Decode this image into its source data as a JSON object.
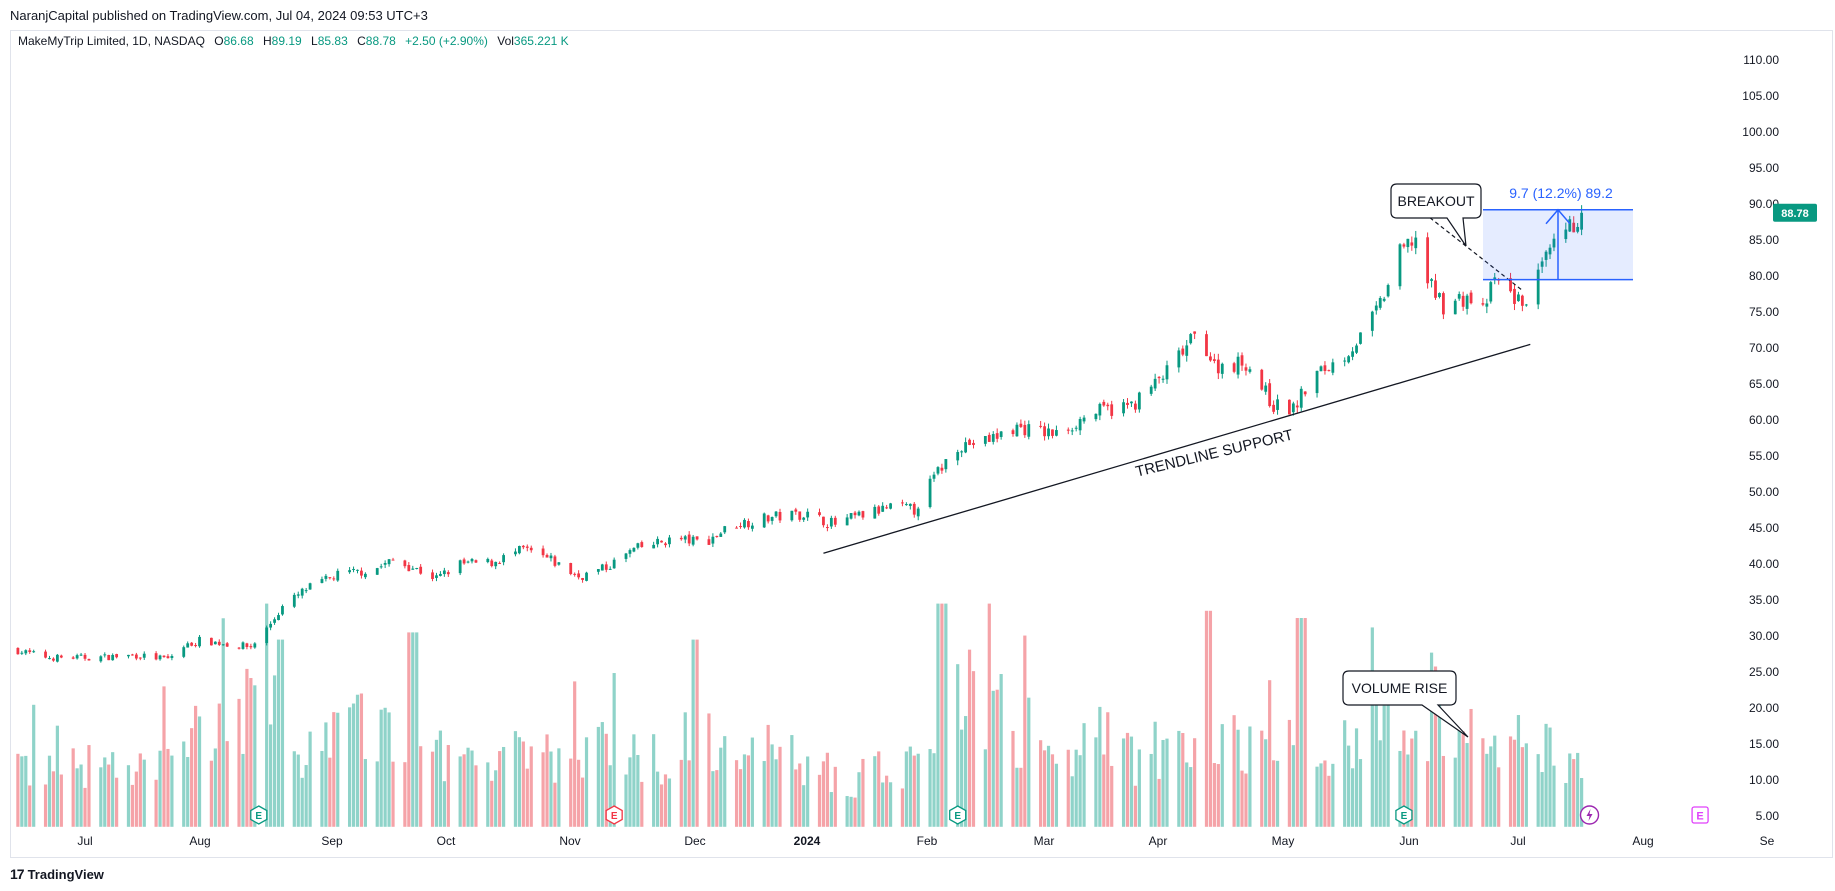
{
  "header": {
    "published": "NaranjCapital published on TradingView.com, Jul 04, 2024 09:53 UTC+3"
  },
  "legend": {
    "symbol": "MakeMyTrip Limited, 1D, NASDAQ",
    "o_label": "O",
    "o_value": "86.68",
    "h_label": "H",
    "h_value": "89.19",
    "l_label": "L",
    "l_value": "85.83",
    "c_label": "C",
    "c_value": "88.78",
    "change": "+2.50 (+2.90%)",
    "vol_label": "Vol",
    "vol_value": "365.221 K"
  },
  "footer": {
    "logo_mark": "17",
    "brand": "TradingView"
  },
  "colors": {
    "up": "#089981",
    "down": "#f23645",
    "up_vol": "#8fd3c9",
    "down_vol": "#f5a3a8",
    "accent": "#2962ff"
  },
  "chart_data": {
    "type": "candlestick",
    "price_axis": {
      "ticks": [
        "110.00",
        "105.00",
        "100.00",
        "95.00",
        "90.00",
        "85.00",
        "80.00",
        "75.00",
        "70.00",
        "65.00",
        "60.00",
        "55.00",
        "50.00",
        "45.00",
        "40.00",
        "35.00",
        "30.00",
        "25.00",
        "20.00",
        "15.00",
        "10.00",
        "5.00"
      ],
      "range": [
        3.5,
        112.5
      ]
    },
    "time_axis": {
      "ticks": [
        "Jul",
        "Aug",
        "Sep",
        "Oct",
        "Nov",
        "Dec",
        "2024",
        "Feb",
        "Mar",
        "Apr",
        "May",
        "Jun",
        "Jul",
        "Aug",
        "Se"
      ]
    },
    "last_price": "88.78",
    "close_path": [
      [
        "2023-06-10",
        28.2
      ],
      [
        "2023-06-20",
        27.0
      ],
      [
        "2023-07-01",
        27.0
      ],
      [
        "2023-07-12",
        27.3
      ],
      [
        "2023-07-20",
        26.8
      ],
      [
        "2023-07-24",
        28.5
      ],
      [
        "2023-07-28",
        29.4
      ],
      [
        "2023-08-05",
        28.8
      ],
      [
        "2023-08-10",
        28.5
      ],
      [
        "2023-08-14",
        31.0
      ],
      [
        "2023-08-18",
        34.0
      ],
      [
        "2023-08-24",
        36.5
      ],
      [
        "2023-09-01",
        38.5
      ],
      [
        "2023-09-10",
        39.2
      ],
      [
        "2023-09-15",
        40.5
      ],
      [
        "2023-09-20",
        39.5
      ],
      [
        "2023-09-26",
        38.0
      ],
      [
        "2023-10-02",
        40.0
      ],
      [
        "2023-10-10",
        40.2
      ],
      [
        "2023-10-18",
        42.0
      ],
      [
        "2023-10-25",
        40.5
      ],
      [
        "2023-11-01",
        38.2
      ],
      [
        "2023-11-08",
        39.5
      ],
      [
        "2023-11-15",
        42.0
      ],
      [
        "2023-11-25",
        43.5
      ],
      [
        "2023-12-03",
        43.0
      ],
      [
        "2023-12-10",
        45.5
      ],
      [
        "2023-12-20",
        46.5
      ],
      [
        "2023-12-28",
        47.0
      ],
      [
        "2024-01-05",
        45.5
      ],
      [
        "2024-01-10",
        46.5
      ],
      [
        "2024-01-20",
        48.0
      ],
      [
        "2024-01-25",
        47.5
      ],
      [
        "2024-01-30",
        52.0
      ],
      [
        "2024-02-05",
        56.5
      ],
      [
        "2024-02-12",
        57.0
      ],
      [
        "2024-02-20",
        59.0
      ],
      [
        "2024-03-01",
        58.0
      ],
      [
        "2024-03-10",
        61.0
      ],
      [
        "2024-03-20",
        62.0
      ],
      [
        "2024-03-28",
        66.0
      ],
      [
        "2024-04-05",
        71.5
      ],
      [
        "2024-04-08",
        70.0
      ],
      [
        "2024-04-10",
        67.5
      ],
      [
        "2024-04-18",
        68.0
      ],
      [
        "2024-04-25",
        62.0
      ],
      [
        "2024-04-30",
        61.5
      ],
      [
        "2024-05-05",
        66.0
      ],
      [
        "2024-05-12",
        68.5
      ],
      [
        "2024-05-18",
        72.0
      ],
      [
        "2024-05-22",
        76.0
      ],
      [
        "2024-05-27",
        83.0
      ],
      [
        "2024-05-31",
        85.5
      ],
      [
        "2024-06-03",
        79.0
      ],
      [
        "2024-06-07",
        76.0
      ],
      [
        "2024-06-13",
        77.0
      ],
      [
        "2024-06-17",
        75.0
      ],
      [
        "2024-06-20",
        79.5
      ],
      [
        "2024-06-25",
        77.0
      ],
      [
        "2024-06-27",
        76.0
      ],
      [
        "2024-07-01",
        80.0
      ],
      [
        "2024-07-05",
        84.0
      ],
      [
        "2024-07-09",
        86.5
      ],
      [
        "2024-07-12",
        88.78
      ]
    ],
    "volume_profile": [
      [
        "2023-06-10",
        9
      ],
      [
        "2023-07-15",
        8
      ],
      [
        "2023-08-12",
        20
      ],
      [
        "2023-08-20",
        12
      ],
      [
        "2023-09-15",
        15
      ],
      [
        "2023-09-25",
        11
      ],
      [
        "2023-10-15",
        10
      ],
      [
        "2023-11-10",
        11
      ],
      [
        "2023-12-01",
        9
      ],
      [
        "2023-12-05",
        13
      ],
      [
        "2024-01-10",
        7
      ],
      [
        "2024-01-30",
        10
      ],
      [
        "2024-02-05",
        22
      ],
      [
        "2024-02-20",
        14
      ],
      [
        "2024-03-05",
        11
      ],
      [
        "2024-03-25",
        10
      ],
      [
        "2024-04-05",
        13
      ],
      [
        "2024-04-15",
        12
      ],
      [
        "2024-05-01",
        11
      ],
      [
        "2024-05-20",
        14
      ],
      [
        "2024-05-31",
        17
      ],
      [
        "2024-06-10",
        11
      ],
      [
        "2024-06-27",
        13
      ],
      [
        "2024-07-12",
        9
      ]
    ],
    "volume_spikes": [
      [
        "2023-08-18",
        26
      ],
      [
        "2023-09-20",
        27
      ],
      [
        "2023-12-01",
        26
      ],
      [
        "2024-02-01",
        31
      ],
      [
        "2024-04-08",
        30
      ],
      [
        "2024-05-02",
        29
      ]
    ],
    "annotations": {
      "trendline_label": "TRENDLINE SUPPORT",
      "breakout_label": "BREAKOUT",
      "volume_label": "VOLUME RISE",
      "measure_label": "9.7 (12.2%) 89.2",
      "measure_range": [
        79.5,
        89.2
      ],
      "trendline": [
        [
          "2024-01-02",
          41.5
        ],
        [
          "2024-06-29",
          70.5
        ]
      ],
      "resistance": [
        [
          "2024-05-29",
          90.5
        ],
        [
          "2024-06-27",
          78.0
        ]
      ],
      "earnings_marks": [
        "2023-08-12",
        "2023-11-10",
        "2024-02-05",
        "2024-05-28"
      ],
      "future_earnings": [
        "2024-08-11"
      ],
      "dividend_mark": [
        "2024-07-14"
      ],
      "earnings_letter": "E"
    }
  }
}
